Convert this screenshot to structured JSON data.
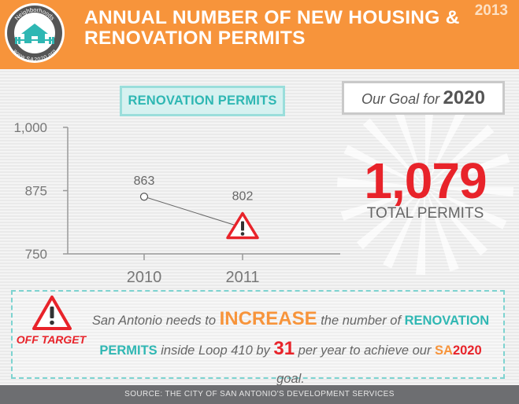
{
  "header": {
    "title_line1": "ANNUAL NUMBER OF NEW HOUSING &",
    "title_line2": "RENOVATION PERMITS",
    "year": "2013",
    "logo_text_top": "Neighborhoods",
    "logo_text_bottom": "www.SA2020.org"
  },
  "colors": {
    "orange": "#f7943b",
    "teal": "#2fb7b3",
    "red": "#e8232a",
    "gray_text": "#666666",
    "footer_bg": "#6d6e71"
  },
  "chart_data": {
    "type": "line",
    "title": "RENOVATION PERMITS",
    "x": [
      "2010",
      "2011"
    ],
    "series": [
      {
        "values": [
          863,
          802
        ],
        "point_labels": [
          "863",
          "802"
        ]
      }
    ],
    "y_ticks": [
      1000,
      875,
      750
    ],
    "y_tick_labels": [
      "1,000",
      "875",
      "750"
    ],
    "ylim": [
      750,
      1000
    ],
    "xlabel": "",
    "ylabel": "",
    "grid": false,
    "warning_marker": "triangle-warning-icon on 2011"
  },
  "goal": {
    "label_prefix": "Our Goal for",
    "year": "2020",
    "number": "1,079",
    "unit": "TOTAL PERMITS"
  },
  "callout": {
    "status": "OFF TARGET",
    "icon": "warning-triangle-icon",
    "t1": "San Antonio needs to",
    "t2": "INCREASE",
    "t3": "the number of",
    "t4": "RENOVATION",
    "t5": "PERMITS",
    "t6": "inside Loop 410 by",
    "t7": "31",
    "t8": "per year to achieve our",
    "t9": "SA",
    "t10": "2020",
    "t11": "goal."
  },
  "footer": {
    "source": "SOURCE: THE CITY OF SAN ANTONIO'S DEVELOPMENT SERVICES"
  }
}
